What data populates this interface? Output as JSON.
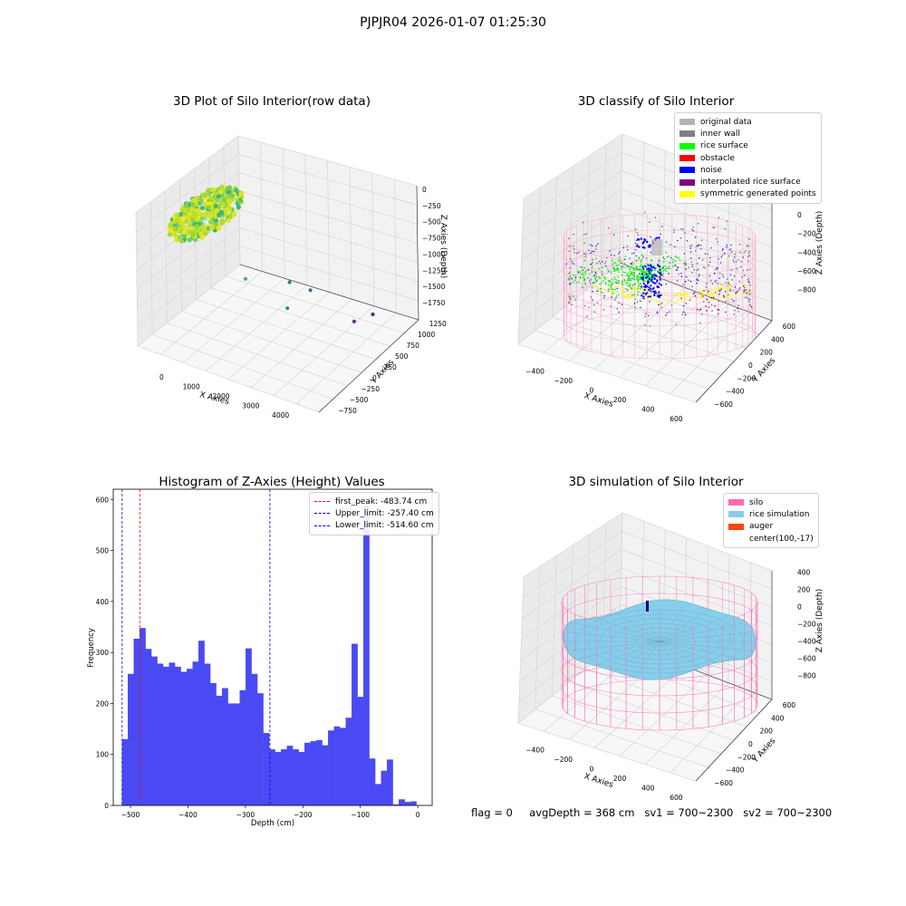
{
  "suptitle": "PJPJR04 2026-01-07 01:25:30",
  "footer": {
    "flag": "flag = 0",
    "avg": "avgDepth = 368 cm",
    "sv1": "sv1 = 700~2300",
    "sv2": "sv2 = 700~2300"
  },
  "chart_data": [
    {
      "type": "scatter",
      "title": "3D Plot of Silo Interior(row data)",
      "xlabel": "X Axies",
      "ylabel": "Y Axies",
      "zlabel": "Z Axies (Depth)",
      "x_ticks": [
        "0",
        "1000",
        "2000",
        "3000",
        "4000"
      ],
      "y_ticks": [
        "−750",
        "−500",
        "−250",
        "0",
        "250",
        "500",
        "750",
        "1000",
        "1250"
      ],
      "z_ticks": [
        "−1750",
        "−1500",
        "−1250",
        "−1000",
        "−750",
        "−500",
        "−250",
        "0"
      ],
      "colormap": "viridis",
      "outliers": [
        {
          "x": 1500,
          "y": 1050,
          "z": -300,
          "color": "#9ad9b0"
        },
        {
          "x": 800,
          "y": 1200,
          "z": -250,
          "color": "#7fd18a"
        },
        {
          "x": 1600,
          "y": 600,
          "z": -1050,
          "color": "#3fae8a"
        },
        {
          "x": 2000,
          "y": 200,
          "z": -1450,
          "color": "#2a8c8c"
        },
        {
          "x": 3300,
          "y": 500,
          "z": -1550,
          "color": "#2c7f8f"
        },
        {
          "x": 3500,
          "y": 300,
          "z": -1650,
          "color": "#2c728e"
        },
        {
          "x": 3200,
          "y": -300,
          "z": -1800,
          "color": "#6a2d83"
        },
        {
          "x": 3700,
          "y": -400,
          "z": -1800,
          "color": "#5b2a7e"
        }
      ]
    },
    {
      "type": "scatter",
      "title": "3D classify of Silo Interior",
      "xlabel": "X Axies",
      "ylabel": "Y Axies",
      "zlabel": "Z Axies (Depth)",
      "x_ticks": [
        "−400",
        "−200",
        "0",
        "200",
        "400",
        "600"
      ],
      "y_ticks": [
        "−600",
        "−400",
        "−200",
        "0",
        "200",
        "400",
        "600"
      ],
      "z_ticks": [
        "−800",
        "−600",
        "−400",
        "−200",
        "0",
        "200"
      ],
      "legend": {
        "location": "upper right",
        "items": [
          {
            "label": "original data",
            "color": "#b3b3b3"
          },
          {
            "label": "inner wall",
            "color": "#808080"
          },
          {
            "label": "rice surface",
            "color": "#00ff00"
          },
          {
            "label": "obstacle",
            "color": "#ff0000"
          },
          {
            "label": "noise",
            "color": "#0000ff"
          },
          {
            "label": "interpolated rice surface",
            "color": "#800080"
          },
          {
            "label": "symmetric generated points",
            "color": "#ffff00"
          }
        ]
      }
    },
    {
      "type": "bar",
      "title": "Histogram of Z-Axies (Height) Values",
      "xlabel": "Depth (cm)",
      "ylabel": "Frequency",
      "xlim": [
        -530,
        25
      ],
      "ylim": [
        0,
        620
      ],
      "x_ticks": [
        -500,
        -400,
        -300,
        -200,
        -100,
        0
      ],
      "x_tick_labels": [
        "−500",
        "−400",
        "−300",
        "−200",
        "−100",
        "0"
      ],
      "y_ticks": [
        0,
        100,
        200,
        300,
        400,
        500,
        600
      ],
      "bin_start": -515,
      "bin_width": 10.25,
      "values": [
        130,
        258,
        327,
        348,
        307,
        292,
        278,
        272,
        280,
        272,
        262,
        268,
        282,
        323,
        278,
        240,
        215,
        230,
        200,
        200,
        226,
        308,
        258,
        220,
        142,
        110,
        105,
        110,
        117,
        110,
        105,
        123,
        126,
        128,
        118,
        147,
        155,
        152,
        172,
        317,
        213,
        587,
        92,
        42,
        68,
        90,
        2,
        12,
        7,
        8
      ],
      "bar_color": "#4a4af5",
      "vlines": [
        {
          "label": "first_peak: -483.74 cm",
          "value": -483.74,
          "color": "#ff0000"
        },
        {
          "label": "Upper_limit: -257.40 cm",
          "value": -257.4,
          "color": "#0000ff"
        },
        {
          "label": "Lower_limit: -514.60 cm",
          "value": -514.6,
          "color": "#0000ff"
        }
      ],
      "legend_location": "upper right"
    },
    {
      "type": "surface",
      "title": "3D simulation of Silo Interior",
      "xlabel": "X Axies",
      "ylabel": "Y Axies",
      "zlabel": "Z Axies (Depth)",
      "x_ticks": [
        "−400",
        "−200",
        "0",
        "200",
        "400",
        "600"
      ],
      "y_ticks": [
        "−600",
        "−400",
        "−200",
        "0",
        "200",
        "400",
        "600"
      ],
      "z_ticks": [
        "−800",
        "−600",
        "−400",
        "−200",
        "0",
        "200",
        "400"
      ],
      "legend": {
        "location": "upper right",
        "items": [
          {
            "label": "silo",
            "color": "#ff69b4"
          },
          {
            "label": "rice simulation",
            "color": "#87ceeb"
          },
          {
            "label": "auger",
            "color": "#ff4500"
          },
          {
            "label": "center(100,-17)",
            "color": ""
          }
        ]
      }
    }
  ]
}
